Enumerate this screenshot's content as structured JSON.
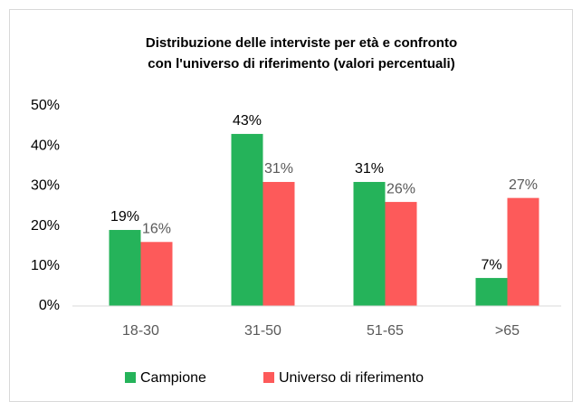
{
  "chart_data": {
    "type": "bar",
    "title": [
      "Distribuzione delle interviste per età e confronto",
      "con l'universo di riferimento (valori percentuali)"
    ],
    "categories": [
      "18-30",
      "31-50",
      "51-65",
      ">65"
    ],
    "series": [
      {
        "name": "Campione",
        "color": "#25b35a",
        "values": [
          19,
          43,
          31,
          7
        ],
        "value_labels": [
          "19%",
          "43%",
          "31%",
          "7%"
        ]
      },
      {
        "name": "Universo di riferimento",
        "color": "#fd5a5a",
        "values": [
          16,
          31,
          26,
          27
        ],
        "value_labels": [
          "16%",
          "31%",
          "26%",
          "27%"
        ]
      }
    ],
    "ylim": [
      0,
      50
    ],
    "yticks": [
      {
        "value": 0,
        "label": "0%"
      },
      {
        "value": 10,
        "label": "10%"
      },
      {
        "value": 20,
        "label": "20%"
      },
      {
        "value": 30,
        "label": "30%"
      },
      {
        "value": 40,
        "label": "40%"
      },
      {
        "value": 50,
        "label": "50%"
      }
    ],
    "grid": false,
    "legend": "bottom"
  }
}
